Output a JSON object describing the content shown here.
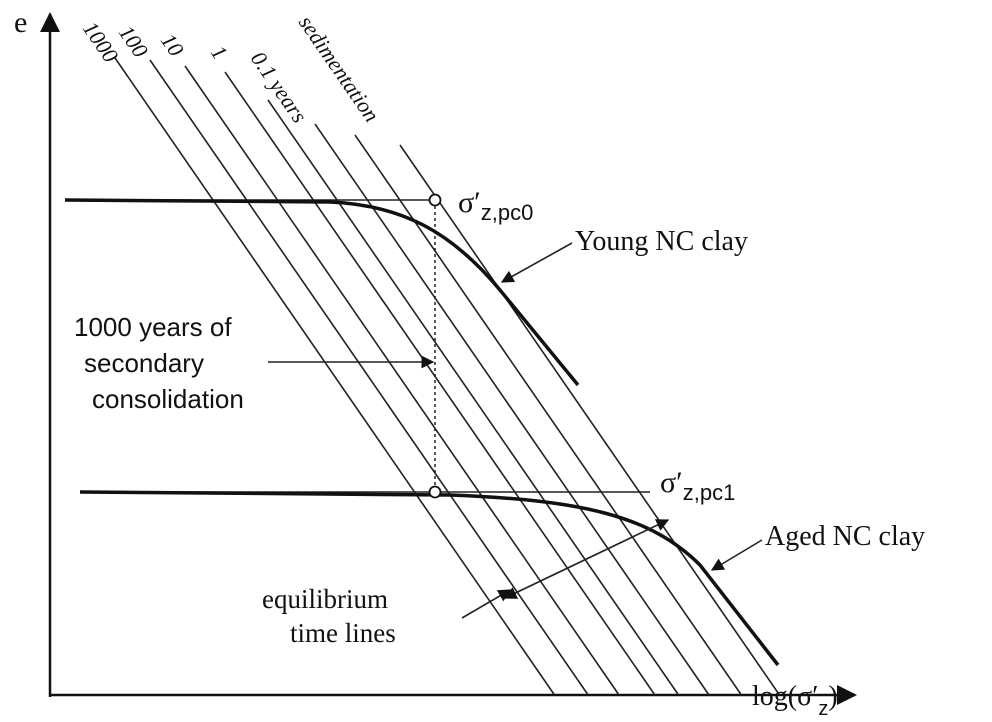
{
  "axes": {
    "y_label": "e",
    "x_label": {
      "prefix": "log(σ′",
      "subscript": "z",
      "suffix": ")"
    }
  },
  "time_lines": [
    "1000",
    "100",
    "10",
    "1",
    "0.1 years",
    "sedimentation"
  ],
  "points": [
    {
      "symbol": "σ′",
      "subscript": "z,pc0"
    },
    {
      "symbol": "σ′",
      "subscript": "z,pc1"
    }
  ],
  "curves": [
    "Young NC clay",
    "Aged NC clay"
  ],
  "annotations": {
    "aging": [
      "1000 years of",
      "secondary",
      "consolidation"
    ],
    "equilibrium": [
      "equilibrium",
      "time lines"
    ]
  }
}
